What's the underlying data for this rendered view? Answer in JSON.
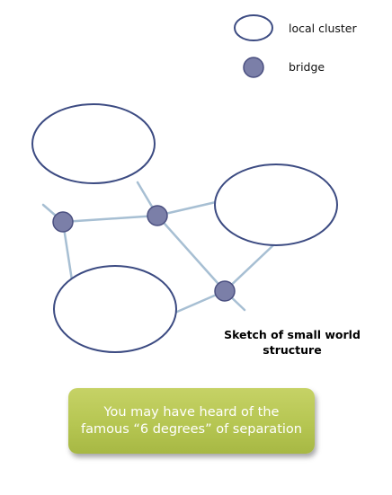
{
  "legend": {
    "cluster_label": "local cluster",
    "bridge_label": "bridge"
  },
  "caption": "Sketch of small world structure",
  "callout": {
    "text": "You may have heard of the famous “6 degrees” of separation"
  },
  "colors": {
    "cluster_stroke": "#3c4b82",
    "bridge_fill": "#7b7fa8",
    "bridge_stroke": "#4a4f80",
    "edge": "#a7bfd3",
    "callout": "#b6c652"
  }
}
